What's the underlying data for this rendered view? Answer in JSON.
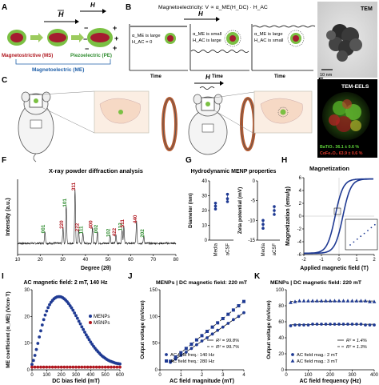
{
  "figure": {
    "panel_labels": {
      "A": "A",
      "B": "B",
      "C": "C",
      "D": "D",
      "E": "E",
      "F": "F",
      "G": "G",
      "H": "H",
      "I": "I",
      "J": "J",
      "K": "K"
    },
    "panel_a": {
      "field_symbol": "H",
      "minus": "−",
      "plus": "+",
      "ms_label": "Magnetostrictive (MS)",
      "pe_label": "Piezoelectric (PE)",
      "me_label": "Magnetoelectric (ME)"
    },
    "panel_b": {
      "equation": "Magnetoelectricity: V ∝ α_ME(H_DC) · H_AC",
      "field_symbol": "H",
      "box1": [
        "α_ME is large",
        "H_AC = 0"
      ],
      "box2": [
        "α_ME is small",
        "H_AC is large"
      ],
      "box3": [
        "α_ME is large",
        "H_AC is small"
      ],
      "time_label": "Time"
    },
    "panel_c": {
      "field_symbol": "H"
    },
    "panel_d": {
      "title": "TEM",
      "scale": "10 nm"
    },
    "panel_e": {
      "title": "TEM-EELS",
      "line1": "BaTiO₃ 36.1 ± 0.6 %",
      "line2": "CoFe₂O₄ 63.9 ± 0.6 %"
    }
  },
  "chart_data": [
    {
      "panel": "F",
      "type": "line",
      "title": "X-ray powder diffraction analysis",
      "xlabel": "Degree (2θ)",
      "ylabel": "Intensity (a.u.)",
      "xlim": [
        10,
        80
      ],
      "xticks": [
        10,
        20,
        30,
        40,
        50,
        60,
        70,
        80
      ],
      "peaks": [
        {
          "x": 22.1,
          "label": "001",
          "color": "#2e8b2e",
          "h": 0.22
        },
        {
          "x": 30.1,
          "label": "220",
          "color": "#b0171f",
          "h": 0.3
        },
        {
          "x": 31.5,
          "label": "101",
          "color": "#2e8b2e",
          "h": 0.7
        },
        {
          "x": 35.4,
          "label": "311",
          "color": "#b0171f",
          "h": 1.0
        },
        {
          "x": 37.0,
          "label": "222",
          "color": "#b0171f",
          "h": 0.25
        },
        {
          "x": 38.9,
          "label": "111",
          "color": "#2e8b2e",
          "h": 0.2
        },
        {
          "x": 43.1,
          "label": "400",
          "color": "#b0171f",
          "h": 0.3
        },
        {
          "x": 45.3,
          "label": "002",
          "color": "#2e8b2e",
          "h": 0.22
        },
        {
          "x": 50.9,
          "label": "102",
          "color": "#2e8b2e",
          "h": 0.15
        },
        {
          "x": 53.5,
          "label": "422",
          "color": "#b0171f",
          "h": 0.16
        },
        {
          "x": 56.2,
          "label": "112",
          "color": "#2e8b2e",
          "h": 0.26
        },
        {
          "x": 57.0,
          "label": "511",
          "color": "#b0171f",
          "h": 0.32
        },
        {
          "x": 62.6,
          "label": "440",
          "color": "#b0171f",
          "h": 0.4
        },
        {
          "x": 65.8,
          "label": "202",
          "color": "#2e8b2e",
          "h": 0.14
        }
      ]
    },
    {
      "panel": "G",
      "type": "scatter",
      "title": "Hydrodynamic MENP properties",
      "left": {
        "ylabel": "Diameter (nm)",
        "ylim": [
          0,
          40
        ],
        "yticks": [
          0,
          10,
          20,
          30,
          40
        ],
        "categories": [
          "Media",
          "aCSF"
        ],
        "points": [
          [
            21,
            23,
            25
          ],
          [
            26,
            28,
            31
          ]
        ]
      },
      "right": {
        "ylabel": "Zeta potential (mV)",
        "ylim": [
          -15,
          0
        ],
        "yticks": [
          -15,
          -10,
          -5,
          0
        ],
        "categories": [
          "Media",
          "aCSF"
        ],
        "points": [
          [
            -12,
            -11,
            -10
          ],
          [
            -8.5,
            -7.5,
            -6.5
          ]
        ]
      }
    },
    {
      "panel": "H",
      "type": "line",
      "title": "Magnetization",
      "xlabel": "Applied magnetic field (T)",
      "ylabel": "Magnetization (emu/g)",
      "xlim": [
        -2,
        2
      ],
      "ylim": [
        -6,
        6
      ],
      "xticks": [
        -2,
        -1,
        0,
        1,
        2
      ],
      "yticks": [
        -6,
        -4,
        -2,
        0,
        2,
        4,
        6
      ],
      "saturation": 5.8
    },
    {
      "panel": "I",
      "type": "scatter",
      "title": "AC magnetic field: 2 mT, 140 Hz",
      "xlabel": "DC bias field (mT)",
      "ylabel": "ME coefficient (α_ME) (V/cm·T)",
      "xlim": [
        0,
        600
      ],
      "ylim": [
        0,
        30
      ],
      "xticks": [
        0,
        100,
        200,
        300,
        400,
        500,
        600
      ],
      "yticks": [
        0,
        10,
        20,
        30
      ],
      "series": [
        {
          "name": "MENPs",
          "color": "#1f3a93",
          "x": [
            0,
            10,
            20,
            30,
            40,
            50,
            60,
            70,
            80,
            90,
            100,
            110,
            120,
            130,
            140,
            150,
            160,
            170,
            180,
            190,
            200,
            210,
            220,
            230,
            240,
            250,
            260,
            270,
            280,
            290,
            300,
            310,
            320,
            330,
            340,
            350,
            360,
            370,
            380,
            390,
            400,
            410,
            420,
            430,
            440,
            450,
            460,
            470,
            480,
            490,
            500,
            510,
            520,
            530,
            540,
            550,
            560,
            570,
            580,
            590,
            600
          ],
          "y": [
            2.0,
            3.5,
            5.4,
            7.6,
            9.9,
            12.3,
            14.6,
            16.8,
            18.8,
            20.5,
            22.0,
            23.3,
            24.4,
            25.3,
            26.0,
            26.6,
            27.0,
            27.3,
            27.4,
            27.4,
            27.3,
            27.0,
            26.6,
            26.1,
            25.5,
            24.8,
            24.0,
            23.2,
            22.3,
            21.3,
            20.3,
            19.3,
            18.2,
            17.2,
            16.1,
            15.1,
            14.1,
            13.1,
            12.2,
            11.3,
            10.4,
            9.6,
            8.8,
            8.1,
            7.4,
            6.8,
            6.2,
            5.6,
            5.1,
            4.7,
            4.3,
            3.9,
            3.6,
            3.3,
            3.1,
            2.9,
            2.7,
            2.5,
            2.4,
            2.3,
            2.2
          ]
        },
        {
          "name": "MSNPs",
          "color": "#b0171f",
          "x": [
            0,
            20,
            40,
            60,
            80,
            100,
            120,
            140,
            160,
            180,
            200,
            220,
            240,
            260,
            280,
            300,
            320,
            340,
            360,
            380,
            400,
            420,
            440,
            460,
            480,
            500,
            520,
            540,
            560,
            580,
            600
          ],
          "y": [
            1,
            1,
            1,
            1,
            1,
            1,
            1,
            1,
            1,
            1,
            1,
            1,
            1,
            1,
            1,
            1,
            1,
            1,
            1,
            1,
            1,
            1,
            1,
            1,
            1,
            1,
            1,
            1,
            1,
            1,
            1
          ]
        }
      ]
    },
    {
      "panel": "J",
      "type": "scatter",
      "title": "MENPs | DC magnetic field: 220 mT",
      "xlabel": "AC field magnitude (mT)",
      "ylabel": "Output voltage (mV/cm)",
      "xlim": [
        0,
        4
      ],
      "ylim": [
        0,
        150
      ],
      "xticks": [
        0,
        1,
        2,
        3,
        4
      ],
      "yticks": [
        0,
        50,
        100,
        150
      ],
      "series": [
        {
          "name": "AC field freq.: 140 Hz",
          "marker": "circle",
          "color": "#1f3a93",
          "x": [
            0.5,
            0.75,
            1.0,
            1.25,
            1.5,
            1.75,
            2.0,
            2.25,
            2.5,
            2.75,
            3.0,
            3.25,
            3.5,
            3.75,
            4.0
          ],
          "y": [
            14,
            20,
            27,
            33,
            40,
            47,
            54,
            60,
            67,
            74,
            80,
            87,
            94,
            100,
            107
          ]
        },
        {
          "name": "AC field freq.: 280 Hz",
          "marker": "square",
          "color": "#1f3a93",
          "x": [
            0.5,
            0.75,
            1.0,
            1.25,
            1.5,
            1.75,
            2.0,
            2.25,
            2.5,
            2.75,
            3.0,
            3.25,
            3.5,
            3.75,
            4.0
          ],
          "y": [
            16,
            24,
            32,
            40,
            48,
            56,
            64,
            72,
            80,
            88,
            96,
            104,
            112,
            120,
            128
          ]
        }
      ],
      "fits": [
        {
          "label": "R² = 99.8%",
          "style": "solid"
        },
        {
          "label": "R² = 99.7%",
          "style": "dashed"
        }
      ]
    },
    {
      "panel": "K",
      "type": "scatter",
      "title": "MENPs | DC magnetic field: 220 mT",
      "xlabel": "AC field frequency (Hz)",
      "ylabel": "Output voltage (mV/cm)",
      "xlim": [
        0,
        400
      ],
      "ylim": [
        0,
        100
      ],
      "xticks": [
        0,
        100,
        200,
        300,
        400
      ],
      "yticks": [
        0,
        20,
        40,
        60,
        80,
        100
      ],
      "series": [
        {
          "name": "AC field mag.: 2 mT",
          "marker": "circle",
          "color": "#1f3a93",
          "x": [
            20,
            40,
            60,
            80,
            100,
            120,
            140,
            160,
            180,
            200,
            220,
            240,
            260,
            280,
            300,
            320,
            340,
            360,
            380,
            400
          ],
          "y": [
            55,
            56,
            56,
            56,
            56,
            57,
            57,
            57,
            57,
            57,
            57,
            57,
            57,
            57,
            57,
            57,
            57,
            56,
            56,
            56
          ]
        },
        {
          "name": "AC field mag.: 3 mT",
          "marker": "triangle",
          "color": "#1f3a93",
          "x": [
            20,
            40,
            60,
            80,
            100,
            120,
            140,
            160,
            180,
            200,
            220,
            240,
            260,
            280,
            300,
            320,
            340,
            360,
            380,
            400
          ],
          "y": [
            84,
            85,
            86,
            86,
            86,
            86,
            86,
            86,
            86,
            86,
            86,
            86,
            86,
            86,
            86,
            86,
            86,
            86,
            85,
            85
          ]
        }
      ],
      "fits": [
        {
          "label": "R² = 1.4%",
          "style": "solid"
        },
        {
          "label": "R² = 1.3%",
          "style": "dashed"
        }
      ]
    }
  ]
}
